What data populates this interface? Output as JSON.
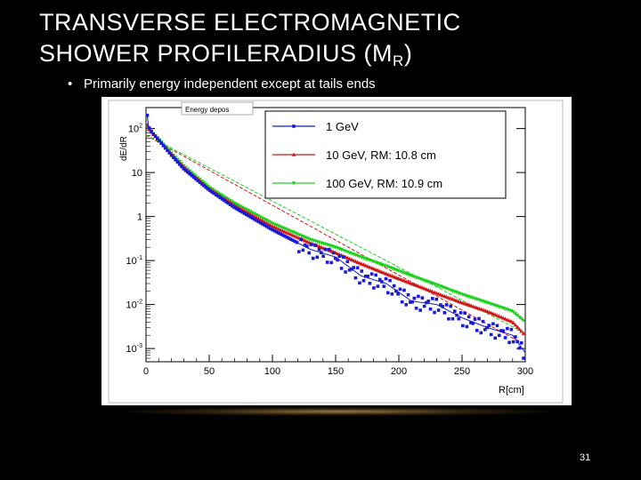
{
  "slide": {
    "title_line1": "TRANSVERSE ELECTROMAGNETIC",
    "title_line2_prefix": "SHOWER PROFILERADIUS (M",
    "title_sub": "R",
    "title_suffix": ")",
    "bullet": "Primarily energy independent except at tails ends",
    "page_number": "31"
  },
  "chart_data": {
    "type": "scatter",
    "title": "Energy depos",
    "xlabel": "R[cm]",
    "ylabel": "dE/dR",
    "xlim": [
      0,
      300
    ],
    "ylim": [
      0.0005,
      300
    ],
    "yscale": "log",
    "x_ticks": [
      "0",
      "50",
      "100",
      "150",
      "200",
      "250",
      "300"
    ],
    "y_ticks": [
      {
        "base": "10",
        "exp": "2",
        "value": 100
      },
      {
        "base": "10",
        "exp": "",
        "value": 10
      },
      {
        "base": "1",
        "exp": "",
        "value": 1
      },
      {
        "base": "10",
        "exp": "-1",
        "value": 0.1
      },
      {
        "base": "10",
        "exp": "-2",
        "value": 0.01
      },
      {
        "base": "10",
        "exp": "-3",
        "value": 0.001
      }
    ],
    "legend_position": "top-right",
    "series": [
      {
        "name": "1 GeV",
        "color": "#1a1ad6",
        "marker": "square",
        "x": [
          1,
          2,
          5,
          10,
          20,
          30,
          50,
          70,
          100,
          130,
          150,
          170,
          190,
          210,
          230,
          250,
          270,
          290,
          300
        ],
        "y": [
          200,
          110,
          80,
          55,
          25,
          12,
          4,
          1.6,
          0.5,
          0.18,
          0.12,
          0.045,
          0.03,
          0.012,
          0.01,
          0.005,
          0.003,
          0.002,
          0.0008
        ]
      },
      {
        "name": "10 GeV, RM: 10.8 cm",
        "color": "#d01818",
        "marker": "triangle-up",
        "x": [
          1,
          2,
          5,
          10,
          20,
          30,
          50,
          70,
          100,
          130,
          150,
          170,
          190,
          210,
          230,
          250,
          270,
          290,
          300
        ],
        "y": [
          120,
          100,
          78,
          55,
          26,
          13,
          4.2,
          1.8,
          0.6,
          0.25,
          0.15,
          0.085,
          0.05,
          0.03,
          0.018,
          0.011,
          0.007,
          0.004,
          0.002
        ]
      },
      {
        "name": "100 GeV, RM: 10.9 cm",
        "color": "#20d020",
        "marker": "triangle-down",
        "x": [
          1,
          2,
          5,
          10,
          20,
          30,
          50,
          70,
          100,
          130,
          150,
          170,
          190,
          210,
          230,
          250,
          270,
          290,
          300
        ],
        "y": [
          110,
          95,
          80,
          58,
          28,
          14,
          4.6,
          2,
          0.7,
          0.3,
          0.2,
          0.12,
          0.075,
          0.045,
          0.028,
          0.017,
          0.011,
          0.007,
          0.004
        ]
      }
    ],
    "fit_lines": [
      {
        "color": "#d01818",
        "x": [
          0,
          300
        ],
        "y": [
          70,
          0.0012
        ]
      },
      {
        "color": "#20d020",
        "x": [
          0,
          300
        ],
        "y": [
          72,
          0.0022
        ]
      }
    ]
  }
}
